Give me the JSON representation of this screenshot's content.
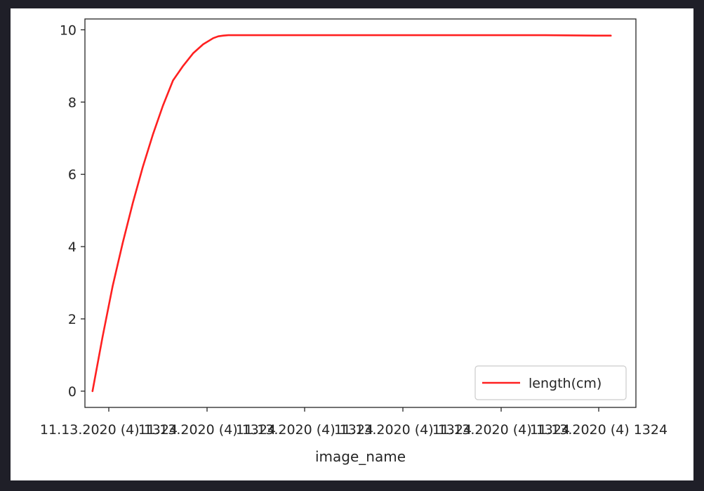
{
  "chart_data": {
    "type": "line",
    "title": "",
    "xlabel": "image_name",
    "ylabel": "",
    "x_tick_labels": [
      "11.13.2020 (4) 1324",
      "11.13.2020 (4) 1324",
      "11.13.2020 (4) 1324",
      "11.13.2020 (4) 1324",
      "11.13.2020 (4) 1324",
      "11.13.2020 (4) 1324"
    ],
    "y_ticks": [
      0,
      2,
      4,
      6,
      8,
      10
    ],
    "ylim": [
      -0.45,
      10.3
    ],
    "xlim": [
      -0.015,
      1.08
    ],
    "grid": false,
    "legend": {
      "position": "lower-right",
      "entries": [
        "length(cm)"
      ]
    },
    "series": [
      {
        "name": "length(cm)",
        "color": "#ff2020",
        "x": [
          0,
          0.02,
          0.04,
          0.06,
          0.08,
          0.1,
          0.12,
          0.14,
          0.16,
          0.18,
          0.2,
          0.22,
          0.24,
          0.25,
          0.26,
          0.27,
          0.28,
          0.3,
          0.35,
          0.4,
          0.5,
          0.6,
          0.7,
          0.8,
          0.9,
          1.0,
          1.03
        ],
        "y": [
          0,
          1.5,
          2.9,
          4.1,
          5.2,
          6.2,
          7.1,
          7.9,
          8.6,
          9.0,
          9.35,
          9.6,
          9.77,
          9.82,
          9.84,
          9.85,
          9.85,
          9.85,
          9.85,
          9.85,
          9.85,
          9.85,
          9.85,
          9.85,
          9.85,
          9.84,
          9.84
        ]
      }
    ]
  }
}
